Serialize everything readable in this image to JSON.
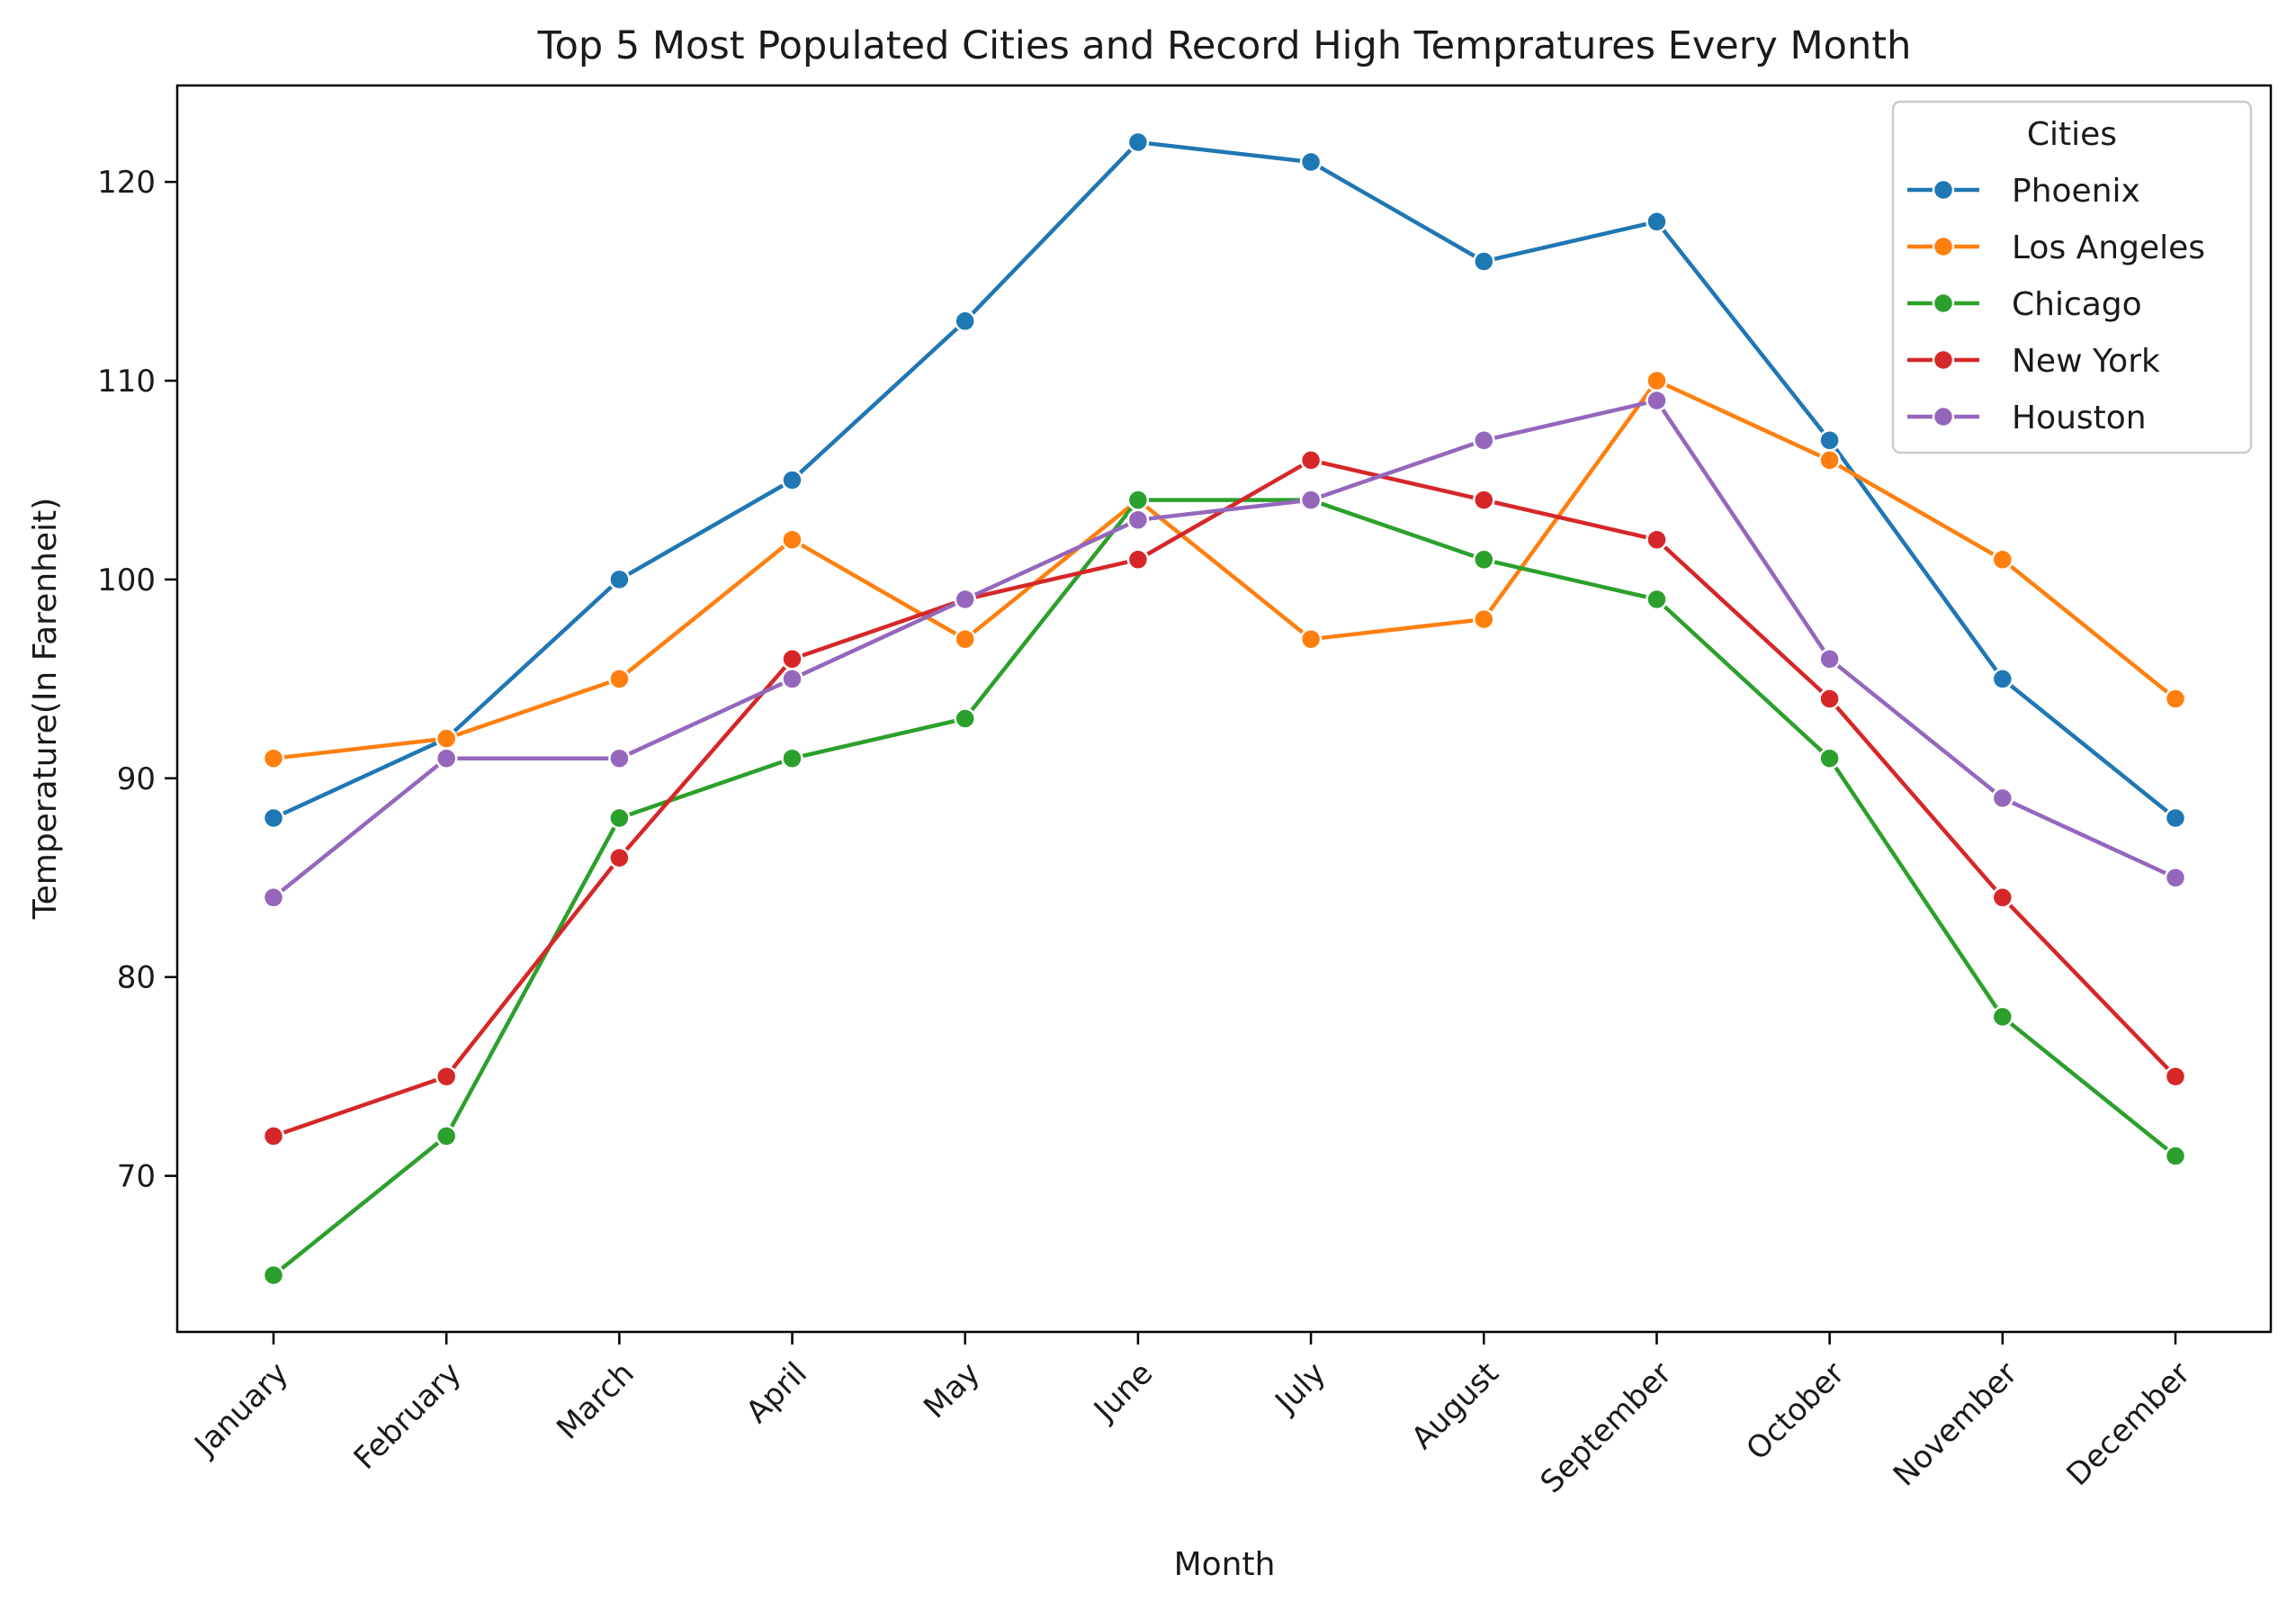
{
  "chart_data": {
    "type": "line",
    "title": "Top 5 Most Populated Cities and Record High Tempratures Every Month",
    "xlabel": "Month",
    "ylabel": "Temperature(In Farenheit)",
    "categories": [
      "January",
      "February",
      "March",
      "April",
      "May",
      "June",
      "July",
      "August",
      "September",
      "October",
      "November",
      "December"
    ],
    "yticks": [
      70,
      80,
      90,
      100,
      110,
      120
    ],
    "ylim": [
      62.15,
      124.85
    ],
    "grid": false,
    "legend": {
      "title": "Cities",
      "placement": "top-right"
    },
    "series": [
      {
        "name": "Phoenix",
        "color": "#1f77b4",
        "values": [
          88,
          92,
          100,
          105,
          113,
          122,
          121,
          116,
          118,
          107,
          95,
          88
        ]
      },
      {
        "name": "Los Angeles",
        "color": "#ff7f0e",
        "values": [
          91,
          92,
          95,
          102,
          97,
          104,
          97,
          98,
          110,
          106,
          101,
          94
        ]
      },
      {
        "name": "Chicago",
        "color": "#2ca02c",
        "values": [
          65,
          72,
          88,
          91,
          93,
          104,
          104,
          101,
          99,
          91,
          78,
          71
        ]
      },
      {
        "name": "New York",
        "color": "#d62728",
        "values": [
          72,
          75,
          86,
          96,
          99,
          101,
          106,
          104,
          102,
          94,
          84,
          75
        ]
      },
      {
        "name": "Houston",
        "color": "#9467bd",
        "values": [
          84,
          91,
          91,
          95,
          99,
          103,
          104,
          107,
          109,
          96,
          89,
          85
        ]
      }
    ]
  }
}
